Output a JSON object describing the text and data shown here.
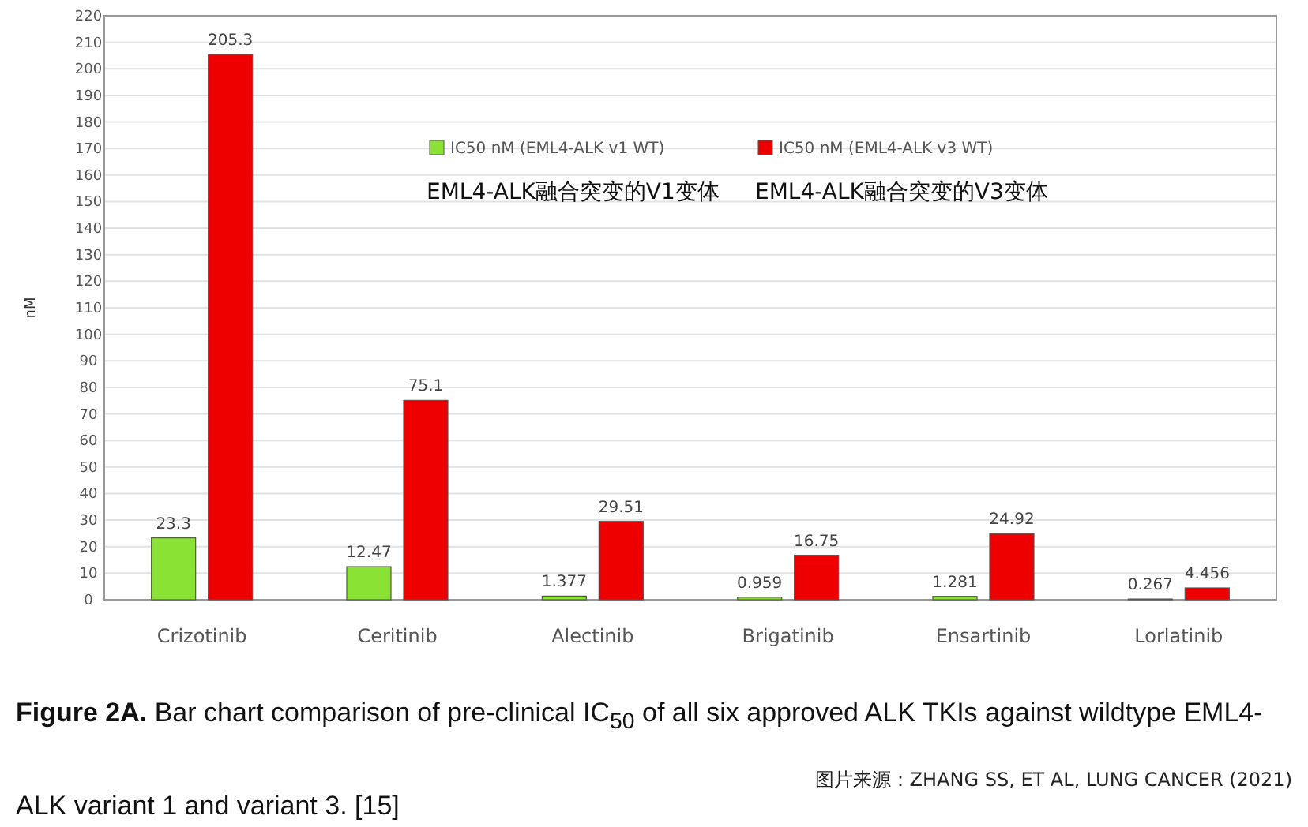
{
  "chart_data": {
    "type": "bar",
    "categories": [
      "Crizotinib",
      "Ceritinib",
      "Alectinib",
      "Brigatinib",
      "Ensartinib",
      "Lorlatinib"
    ],
    "series": [
      {
        "name": "IC50 nM (EML4-ALK v1 WT)",
        "color": "#8ae234",
        "values": [
          23.3,
          12.47,
          1.377,
          0.959,
          1.281,
          0.267
        ]
      },
      {
        "name": "IC50 nM (EML4-ALK v3 WT)",
        "color": "#ee0000",
        "values": [
          205.3,
          75.1,
          29.51,
          16.75,
          24.92,
          4.456
        ]
      }
    ],
    "ylabel": "nM",
    "ylim": [
      0,
      220
    ],
    "yticks": [
      0,
      10,
      20,
      30,
      40,
      50,
      60,
      70,
      80,
      90,
      100,
      110,
      120,
      130,
      140,
      150,
      160,
      170,
      180,
      190,
      200,
      210,
      220
    ],
    "grid": "y",
    "legend": "top",
    "data_labels": true,
    "annotations": [
      "EML4-ALK融合突变的V1变体",
      "EML4-ALK融合突变的V3变体",
      "Figure 2A. Bar chart comparison of pre-clinical IC$_{50}$ of all six approved ALK TKIs against wildtype EML4-ALK variant 1 and variant 3. [15]",
      "图片来源：ZHANG SS, ET AL, LUNG CANCER (2021)"
    ]
  }
}
